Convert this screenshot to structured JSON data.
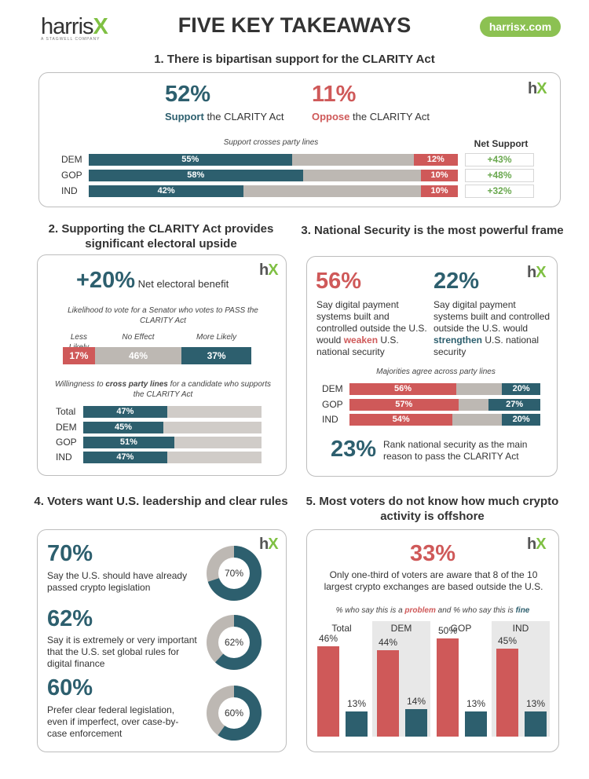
{
  "header": {
    "logo_text": "harris",
    "logo_x": "X",
    "logo_sub": "A STAGWELL COMPANY",
    "title": "FIVE KEY TAKEAWAYS",
    "site_badge": "harrisx.com"
  },
  "brand_mark": {
    "h": "h",
    "x": "X"
  },
  "colors": {
    "teal": "#2d5f6e",
    "red": "#cf5959",
    "gray": "#bdb8b3",
    "green": "#6aa84f"
  },
  "s1": {
    "heading": "1. There is bipartisan support for the CLARITY Act",
    "support_pct": "52%",
    "support_word": "Support",
    "support_rest": " the CLARITY Act",
    "oppose_pct": "11%",
    "oppose_word": "Oppose",
    "oppose_rest": " the CLARITY Act",
    "chart_subtitle": "Support crosses party lines",
    "net_header": "Net Support"
  },
  "s2": {
    "heading": "2. Supporting the CLARITY Act provides significant electoral upside",
    "big": "+20%",
    "big_label": " Net electoral benefit",
    "q1": "Likelihood to vote for a Senator who votes to PASS the CLARITY Act",
    "q2_a": "Willingness to ",
    "q2_b": "cross party lines",
    "q2_c": " for a candidate who supports the CLARITY Act"
  },
  "s3": {
    "heading": "3. National Security is the most powerful frame",
    "weaken_pct": "56%",
    "weaken_a": "Say digital payment systems built and controlled outside the U.S. would ",
    "weaken_word": "weaken",
    "weaken_c": " U.S. national security",
    "strengthen_pct": "22%",
    "strengthen_a": "Say digital payment systems built and controlled outside the U.S. would ",
    "strengthen_word": "strengthen",
    "strengthen_c": " U.S. national security",
    "chart_subtitle": "Majorities agree across party lines",
    "bottom_pct": "23%",
    "bottom_text": "Rank national security as the main reason to pass the CLARITY Act"
  },
  "s4": {
    "heading": "4. Voters want U.S. leadership and clear rules",
    "items": [
      {
        "pct": "70%",
        "text": "Say the U.S. should have already passed crypto legislation"
      },
      {
        "pct": "62%",
        "text": "Say it is extremely or very important that the U.S. set global rules for digital finance"
      },
      {
        "pct": "60%",
        "text": "Prefer clear federal legislation, even if imperfect, over case-by-case enforcement"
      }
    ]
  },
  "s5": {
    "heading": "5. Most voters do not know how much crypto activity is offshore",
    "big": "33%",
    "text": "Only one-third of voters are aware that 8 of the 10 largest crypto exchanges are based outside the U.S.",
    "legend_a": "% who say this is a ",
    "legend_problem": "problem",
    "legend_b": " and % who say this is ",
    "legend_fine": "fine"
  },
  "chart_data": [
    {
      "type": "bar",
      "orientation": "horizontal-stacked",
      "title": "Support crosses party lines",
      "categories": [
        "DEM",
        "GOP",
        "IND"
      ],
      "series": [
        {
          "name": "Support",
          "values": [
            55,
            58,
            42
          ]
        },
        {
          "name": "Oppose",
          "values": [
            12,
            10,
            10
          ]
        }
      ],
      "net_support": [
        "+43%",
        "+48%",
        "+32%"
      ]
    },
    {
      "type": "bar",
      "orientation": "horizontal-stacked",
      "title": "Likelihood to vote for a Senator who votes to PASS the CLARITY Act",
      "categories": [
        "Less Likely",
        "No Effect",
        "More Likely"
      ],
      "values": [
        17,
        46,
        37
      ]
    },
    {
      "type": "bar",
      "orientation": "horizontal",
      "title": "Willingness to cross party lines for a candidate who supports the CLARITY Act",
      "categories": [
        "Total",
        "DEM",
        "GOP",
        "IND"
      ],
      "values": [
        47,
        45,
        51,
        47
      ]
    },
    {
      "type": "bar",
      "orientation": "horizontal-stacked",
      "title": "Majorities agree across party lines",
      "categories": [
        "DEM",
        "GOP",
        "IND"
      ],
      "series": [
        {
          "name": "weaken",
          "values": [
            56,
            57,
            54
          ]
        },
        {
          "name": "strengthen",
          "values": [
            20,
            27,
            20
          ]
        }
      ]
    },
    {
      "type": "pie",
      "values": [
        70,
        62,
        60
      ],
      "labels": [
        "70%",
        "62%",
        "60%"
      ]
    },
    {
      "type": "bar",
      "orientation": "vertical-grouped",
      "categories": [
        "Total",
        "DEM",
        "GOP",
        "IND"
      ],
      "series": [
        {
          "name": "problem",
          "values": [
            46,
            44,
            50,
            45
          ]
        },
        {
          "name": "fine",
          "values": [
            13,
            14,
            13,
            13
          ]
        }
      ]
    }
  ]
}
